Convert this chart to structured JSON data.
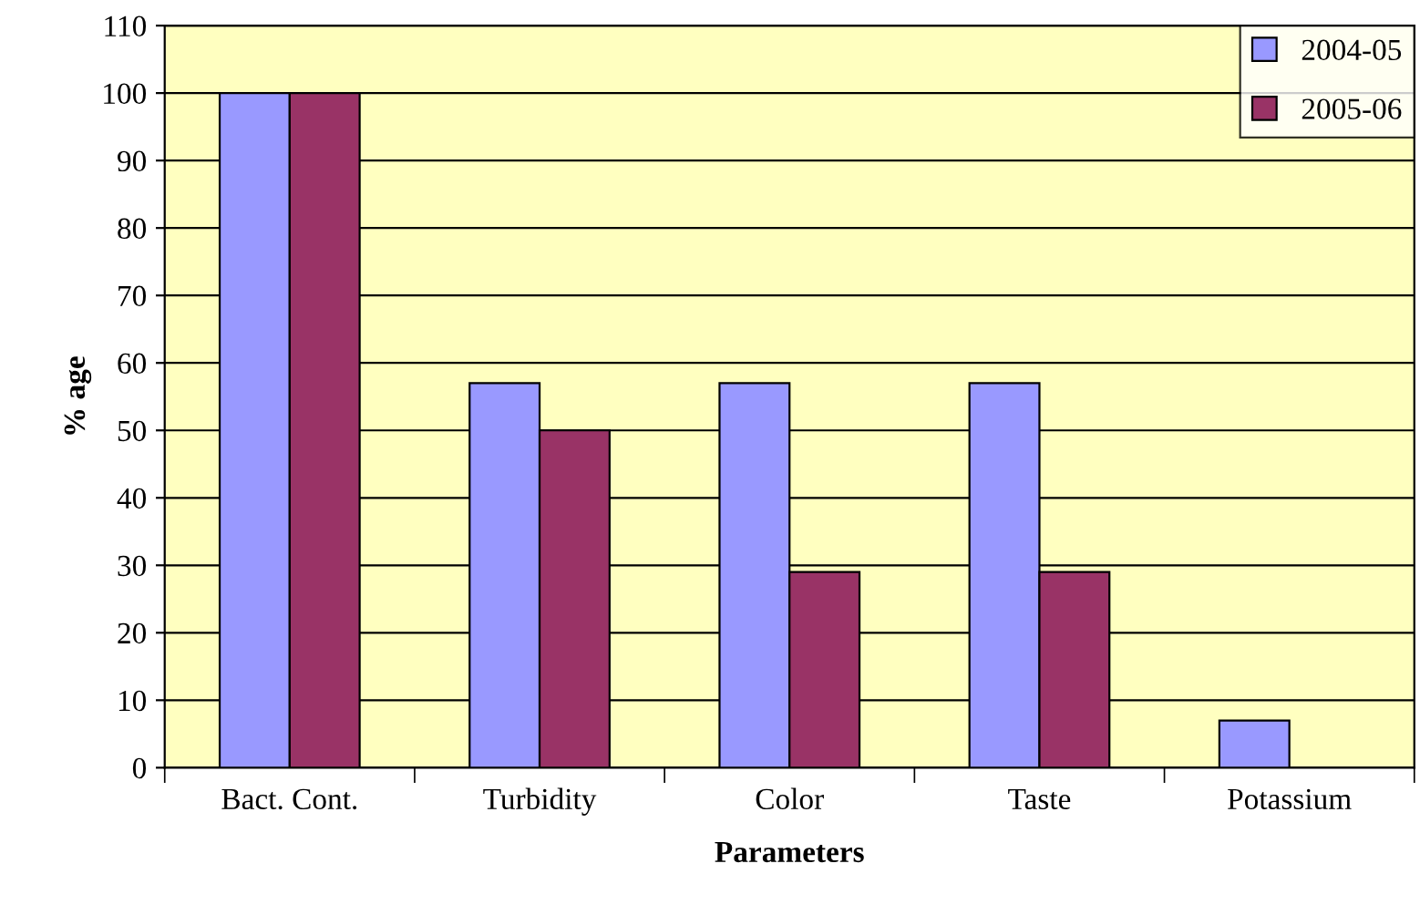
{
  "chart_data": {
    "type": "bar",
    "xlabel": "Parameters",
    "ylabel": "% age",
    "categories": [
      "Bact. Cont.",
      "Turbidity",
      "Color",
      "Taste",
      "Potassium"
    ],
    "series": [
      {
        "name": "2004-05",
        "color": "#9999ff",
        "values": [
          100,
          57,
          57,
          57,
          7
        ]
      },
      {
        "name": "2005-06",
        "color": "#993366",
        "values": [
          100,
          50,
          29,
          29,
          null
        ]
      }
    ],
    "ylim": [
      0,
      110
    ],
    "yticks": [
      0,
      10,
      20,
      30,
      40,
      50,
      60,
      70,
      80,
      90,
      100,
      110
    ],
    "grid": "y",
    "legend": "top right"
  }
}
